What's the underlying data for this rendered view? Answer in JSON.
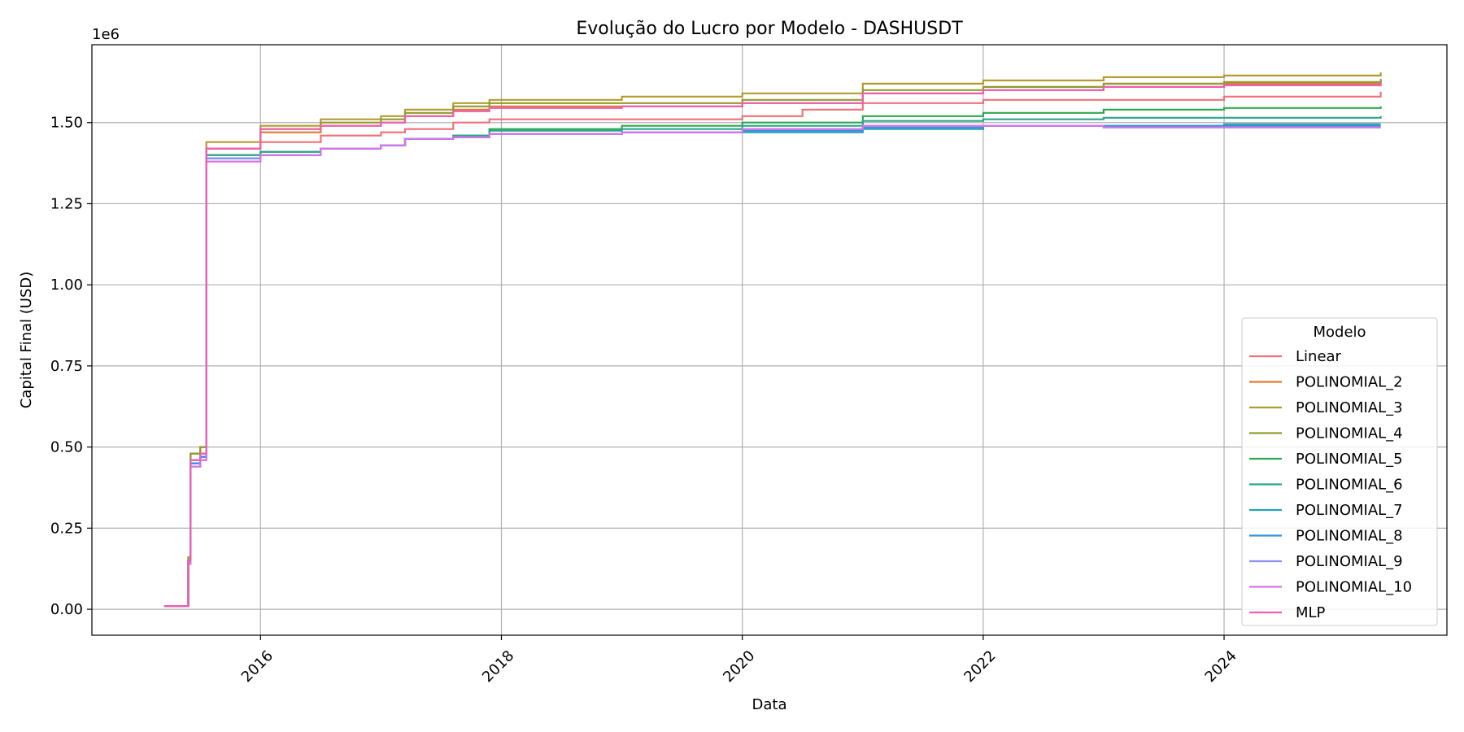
{
  "chart_data": {
    "type": "line",
    "title": "Evolução do Lucro por Modelo - DASHUSDT",
    "xlabel": "Data",
    "ylabel": "Capital Final (USD)",
    "y_offset_label": "1e6",
    "xlim": [
      2014.6,
      2025.85
    ],
    "ylim": [
      -0.08,
      1.74
    ],
    "x_ticks": [
      2016,
      2018,
      2020,
      2022,
      2024
    ],
    "x_tick_labels": [
      "2016",
      "2018",
      "2020",
      "2022",
      "2024"
    ],
    "y_ticks": [
      0.0,
      0.25,
      0.5,
      0.75,
      1.0,
      1.25,
      1.5
    ],
    "y_tick_labels": [
      "0.00",
      "0.25",
      "0.50",
      "0.75",
      "1.00",
      "1.25",
      "1.50"
    ],
    "grid": true,
    "legend": {
      "title": "Modelo",
      "placement": "lower right"
    },
    "series": [
      {
        "name": "Linear",
        "color": "#f1707a",
        "x": [
          2015.2,
          2015.3,
          2015.4,
          2015.42,
          2015.5,
          2015.55,
          2016,
          2016.5,
          2017,
          2017.2,
          2017.6,
          2017.9,
          2019,
          2020,
          2020.5,
          2021,
          2022,
          2023,
          2024,
          2025.3
        ],
        "y": [
          0.01,
          0.01,
          0.15,
          0.45,
          0.47,
          1.42,
          1.44,
          1.46,
          1.47,
          1.48,
          1.5,
          1.51,
          1.51,
          1.52,
          1.54,
          1.56,
          1.57,
          1.57,
          1.58,
          1.595
        ]
      },
      {
        "name": "POLINOMIAL_2",
        "color": "#e07b2e",
        "x": [
          2015.2,
          2015.3,
          2015.4,
          2015.42,
          2015.5,
          2015.55,
          2016,
          2016.5,
          2017,
          2017.2,
          2017.6,
          2017.9,
          2019,
          2020,
          2021,
          2022,
          2023,
          2024,
          2025.3
        ],
        "y": [
          0.01,
          0.01,
          0.15,
          0.48,
          0.5,
          1.42,
          1.47,
          1.49,
          1.5,
          1.52,
          1.54,
          1.55,
          1.55,
          1.56,
          1.59,
          1.6,
          1.61,
          1.62,
          1.63
        ]
      },
      {
        "name": "POLINOMIAL_3",
        "color": "#b59a30",
        "x": [
          2015.2,
          2015.3,
          2015.4,
          2015.42,
          2015.5,
          2015.55,
          2016,
          2016.5,
          2017,
          2017.2,
          2017.6,
          2017.9,
          2019,
          2020,
          2021,
          2022,
          2023,
          2024,
          2025.3
        ],
        "y": [
          0.01,
          0.01,
          0.16,
          0.48,
          0.5,
          1.44,
          1.49,
          1.51,
          1.52,
          1.54,
          1.56,
          1.57,
          1.58,
          1.59,
          1.62,
          1.63,
          1.64,
          1.645,
          1.655
        ]
      },
      {
        "name": "POLINOMIAL_4",
        "color": "#8f9d2a",
        "x": [
          2015.2,
          2015.3,
          2015.4,
          2015.42,
          2015.5,
          2015.55,
          2016,
          2016.5,
          2017,
          2017.2,
          2017.6,
          2017.9,
          2019,
          2020,
          2021,
          2022,
          2023,
          2024,
          2025.3
        ],
        "y": [
          0.01,
          0.01,
          0.16,
          0.48,
          0.5,
          1.42,
          1.48,
          1.5,
          1.51,
          1.53,
          1.55,
          1.56,
          1.56,
          1.57,
          1.6,
          1.61,
          1.62,
          1.625,
          1.635
        ]
      },
      {
        "name": "POLINOMIAL_5",
        "color": "#2ea84f",
        "x": [
          2015.2,
          2015.3,
          2015.4,
          2015.42,
          2015.5,
          2015.55,
          2016,
          2016.5,
          2017,
          2017.2,
          2017.6,
          2017.9,
          2019,
          2020,
          2021,
          2022,
          2023,
          2024,
          2025.3
        ],
        "y": [
          0.01,
          0.01,
          0.15,
          0.46,
          0.48,
          1.4,
          1.41,
          1.42,
          1.43,
          1.45,
          1.46,
          1.48,
          1.49,
          1.5,
          1.52,
          1.53,
          1.54,
          1.545,
          1.55
        ]
      },
      {
        "name": "POLINOMIAL_6",
        "color": "#2ba58a",
        "x": [
          2015.2,
          2015.3,
          2015.4,
          2015.42,
          2015.5,
          2015.55,
          2016,
          2016.5,
          2017,
          2017.2,
          2017.6,
          2017.9,
          2019,
          2020,
          2021,
          2022,
          2023,
          2024,
          2025.3
        ],
        "y": [
          0.01,
          0.01,
          0.15,
          0.46,
          0.48,
          1.4,
          1.41,
          1.42,
          1.43,
          1.45,
          1.46,
          1.475,
          1.48,
          1.49,
          1.505,
          1.51,
          1.515,
          1.515,
          1.52
        ]
      },
      {
        "name": "POLINOMIAL_7",
        "color": "#2aa0b0",
        "x": [
          2015.2,
          2015.3,
          2015.4,
          2015.42,
          2015.5,
          2015.55,
          2016,
          2016.5,
          2017,
          2017.2,
          2017.6,
          2017.9,
          2019,
          2020,
          2021,
          2022,
          2023,
          2024,
          2025.3
        ],
        "y": [
          0.01,
          0.01,
          0.14,
          0.45,
          0.47,
          1.39,
          1.4,
          1.42,
          1.43,
          1.45,
          1.455,
          1.465,
          1.47,
          1.47,
          1.48,
          1.49,
          1.49,
          1.495,
          1.495
        ]
      },
      {
        "name": "POLINOMIAL_8",
        "color": "#3394d9",
        "x": [
          2015.2,
          2015.3,
          2015.4,
          2015.42,
          2015.5,
          2015.55,
          2016,
          2016.5,
          2017,
          2017.2,
          2017.6,
          2017.9,
          2019,
          2020,
          2021,
          2022,
          2023,
          2024,
          2025.3
        ],
        "y": [
          0.01,
          0.01,
          0.14,
          0.45,
          0.47,
          1.39,
          1.4,
          1.42,
          1.43,
          1.45,
          1.455,
          1.465,
          1.47,
          1.475,
          1.485,
          1.49,
          1.49,
          1.49,
          1.49
        ]
      },
      {
        "name": "POLINOMIAL_9",
        "color": "#8d8ff0",
        "x": [
          2015.2,
          2015.3,
          2015.4,
          2015.42,
          2015.5,
          2015.55,
          2016,
          2016.5,
          2017,
          2017.2,
          2017.6,
          2017.9,
          2019,
          2020,
          2021,
          2022,
          2023,
          2024,
          2025.3
        ],
        "y": [
          0.01,
          0.01,
          0.14,
          0.44,
          0.46,
          1.39,
          1.4,
          1.42,
          1.43,
          1.45,
          1.455,
          1.465,
          1.47,
          1.48,
          1.49,
          1.49,
          1.485,
          1.485,
          1.485
        ]
      },
      {
        "name": "POLINOMIAL_10",
        "color": "#d774e8",
        "x": [
          2015.2,
          2015.3,
          2015.4,
          2015.42,
          2015.5,
          2015.55,
          2016,
          2016.5,
          2017,
          2017.2,
          2017.6,
          2017.9,
          2019,
          2020,
          2021,
          2022,
          2023,
          2024,
          2025.3
        ],
        "y": [
          0.01,
          0.01,
          0.14,
          0.44,
          0.46,
          1.38,
          1.4,
          1.42,
          1.43,
          1.45,
          1.455,
          1.465,
          1.47,
          1.48,
          1.49,
          1.49,
          1.485,
          1.485,
          1.485
        ]
      },
      {
        "name": "MLP",
        "color": "#ee5fb4",
        "x": [
          2015.2,
          2015.3,
          2015.4,
          2015.42,
          2015.5,
          2015.55,
          2016,
          2016.5,
          2017,
          2017.2,
          2017.6,
          2017.9,
          2019,
          2020,
          2021,
          2022,
          2023,
          2024,
          2025.3
        ],
        "y": [
          0.01,
          0.01,
          0.15,
          0.46,
          0.48,
          1.42,
          1.48,
          1.49,
          1.5,
          1.52,
          1.535,
          1.545,
          1.55,
          1.56,
          1.59,
          1.6,
          1.61,
          1.615,
          1.625
        ]
      }
    ]
  }
}
